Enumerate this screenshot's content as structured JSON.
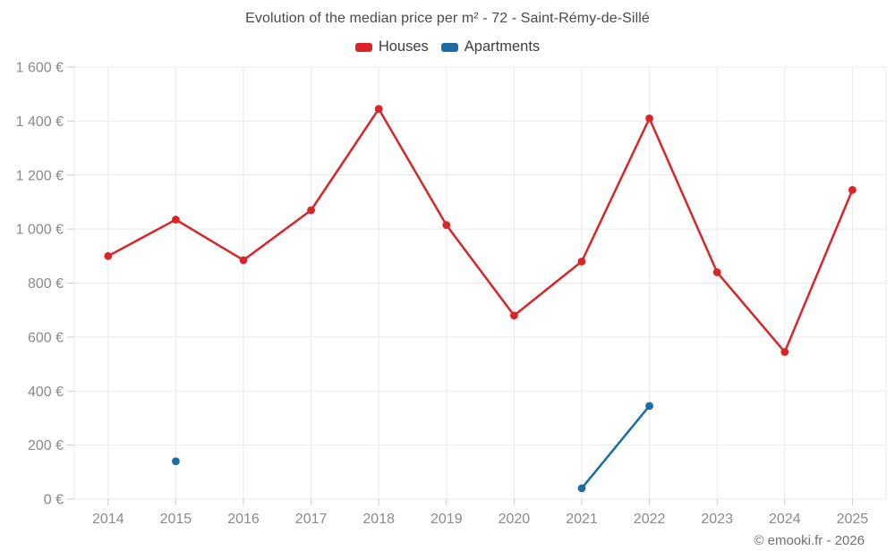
{
  "chart_data": {
    "type": "line",
    "title": "Evolution of the median price per m² - 72 - Saint-Rémy-de-Sillé",
    "categories": [
      "2014",
      "2015",
      "2016",
      "2017",
      "2018",
      "2019",
      "2020",
      "2021",
      "2022",
      "2023",
      "2024",
      "2025"
    ],
    "series": [
      {
        "name": "Houses",
        "color": "#da2428",
        "values": [
          900,
          1035,
          885,
          1070,
          1445,
          1015,
          680,
          880,
          1410,
          840,
          545,
          1145
        ]
      },
      {
        "name": "Apartments",
        "color": "#1a6ca3",
        "values": [
          null,
          140,
          null,
          null,
          null,
          null,
          null,
          40,
          345,
          null,
          null,
          null
        ]
      }
    ],
    "ylim": [
      0,
      1600
    ],
    "ytick_step": 200,
    "ytick_labels": [
      "0 €",
      "200 €",
      "400 €",
      "600 €",
      "800 €",
      "1 000 €",
      "1 200 €",
      "1 400 €",
      "1 600 €"
    ],
    "xlabel": "",
    "ylabel": "",
    "grid": true,
    "legend_position": "top"
  },
  "footer": {
    "copyright": "© emooki.fr - 2026"
  },
  "theme": {
    "axis_label_color": "#8a8a8a",
    "gridline_color": "#e9e9e9",
    "tick_color": "#cccccc"
  }
}
